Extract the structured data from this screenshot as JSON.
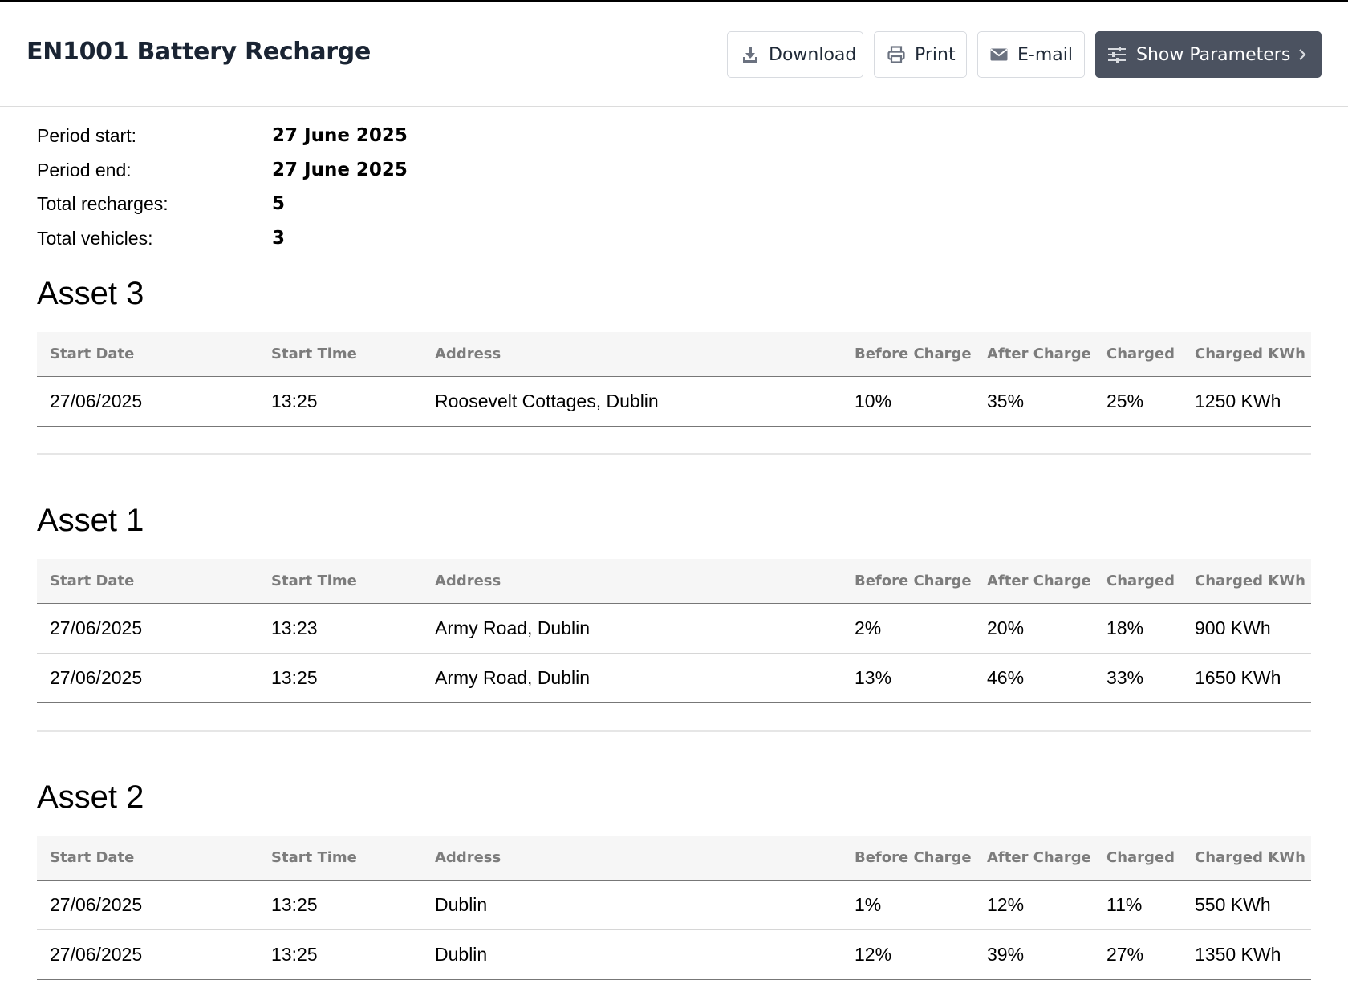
{
  "header": {
    "title": "EN1001 Battery Recharge",
    "actions": {
      "download_label": "Download",
      "print_label": "Print",
      "email_label": "E-mail",
      "params_label": "Show Parameters"
    },
    "icons": {
      "download": "download-icon",
      "print": "printer-icon",
      "email": "envelope-icon",
      "params": "sliders-icon",
      "params_chevron": "chevron-right-icon"
    }
  },
  "summary": [
    {
      "label": "Period start:",
      "value": "27 June 2025"
    },
    {
      "label": "Period end:",
      "value": "27 June 2025"
    },
    {
      "label": "Total recharges:",
      "value": "5"
    },
    {
      "label": "Total vehicles:",
      "value": "3"
    }
  ],
  "columns": [
    "Start Date",
    "Start Time",
    "Address",
    "Before Charge",
    "After Charge",
    "Charged",
    "Charged KWh"
  ],
  "assets": [
    {
      "title": "Asset 3",
      "rows": [
        [
          "27/06/2025",
          "13:25",
          "Roosevelt Cottages, Dublin",
          "10%",
          "35%",
          "25%",
          "1250 KWh"
        ]
      ]
    },
    {
      "title": "Asset 1",
      "rows": [
        [
          "27/06/2025",
          "13:23",
          "Army Road, Dublin",
          "2%",
          "20%",
          "18%",
          "900 KWh"
        ],
        [
          "27/06/2025",
          "13:25",
          "Army Road, Dublin",
          "13%",
          "46%",
          "33%",
          "1650 KWh"
        ]
      ]
    },
    {
      "title": "Asset 2",
      "rows": [
        [
          "27/06/2025",
          "13:25",
          "Dublin",
          "1%",
          "12%",
          "11%",
          "550 KWh"
        ],
        [
          "27/06/2025",
          "13:25",
          "Dublin",
          "12%",
          "39%",
          "27%",
          "1350 KWh"
        ]
      ]
    }
  ],
  "colors": {
    "title_text": "#1a2433",
    "primary_button": "#4b5260",
    "table_header_bg": "#f6f6f6",
    "table_header_text": "#7c7c7c"
  }
}
